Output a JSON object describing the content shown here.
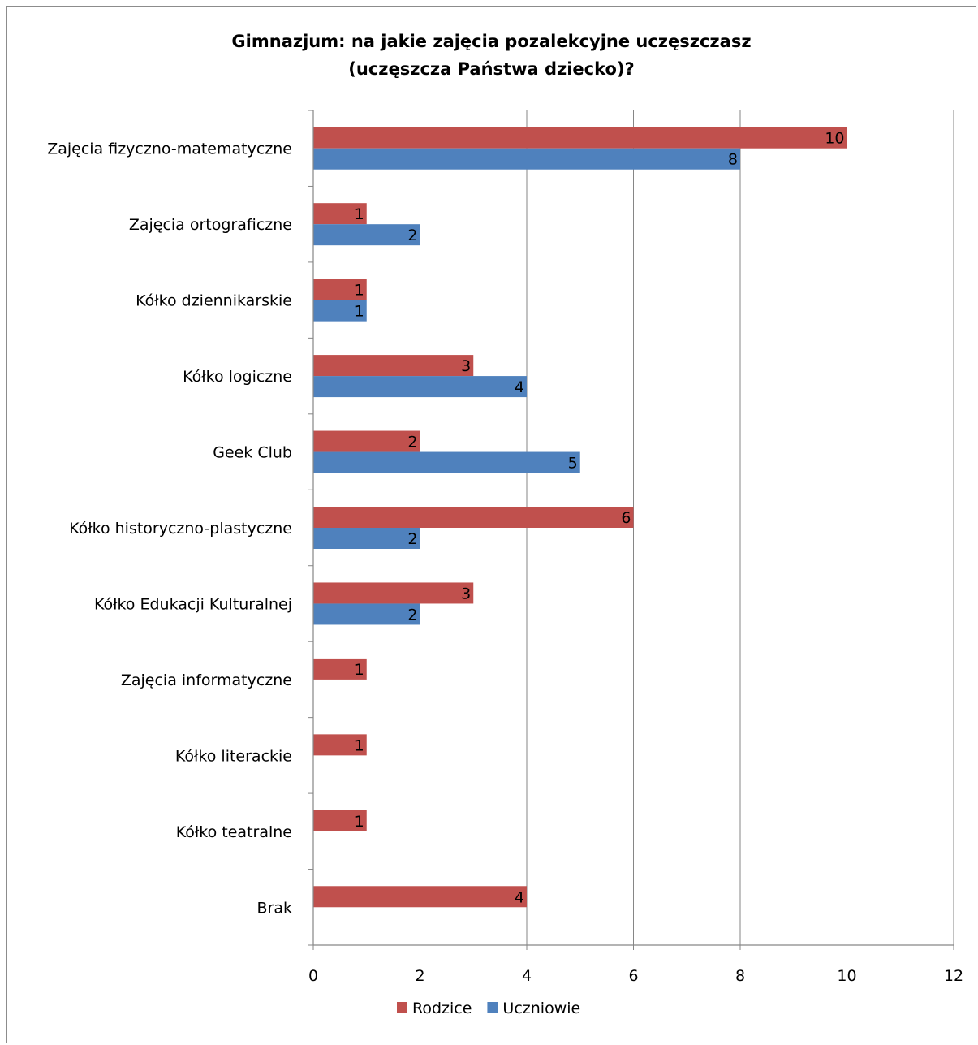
{
  "chart_data": {
    "type": "bar",
    "orientation": "horizontal",
    "title_lines": [
      "Gimnazjum: na jakie zajęcia pozalekcyjne uczęszczasz",
      "(uczęszcza Państwa dziecko)?"
    ],
    "categories": [
      "Zajęcia fizyczno-matematyczne",
      "Zajęcia ortograficzne",
      "Kółko dziennikarskie",
      "Kółko logiczne",
      "Geek Club",
      "Kółko historyczno-plastyczne",
      "Kółko Edukacji Kulturalnej",
      "Zajęcia informatyczne",
      "Kółko literackie",
      "Kółko teatralne",
      "Brak"
    ],
    "series": [
      {
        "name": "Rodzice",
        "color": "#c0504d",
        "values": [
          10,
          1,
          1,
          3,
          2,
          6,
          3,
          1,
          1,
          1,
          4
        ]
      },
      {
        "name": "Uczniowie",
        "color": "#4f81bd",
        "values": [
          8,
          2,
          1,
          4,
          5,
          2,
          2,
          null,
          null,
          null,
          null
        ]
      }
    ],
    "x_ticks": [
      "0",
      "2",
      "4",
      "6",
      "8",
      "10",
      "12"
    ],
    "xlim": [
      0,
      12
    ],
    "xlabel": "",
    "ylabel": "",
    "grid": "vertical",
    "legend": "bottom",
    "data_labels": true
  }
}
